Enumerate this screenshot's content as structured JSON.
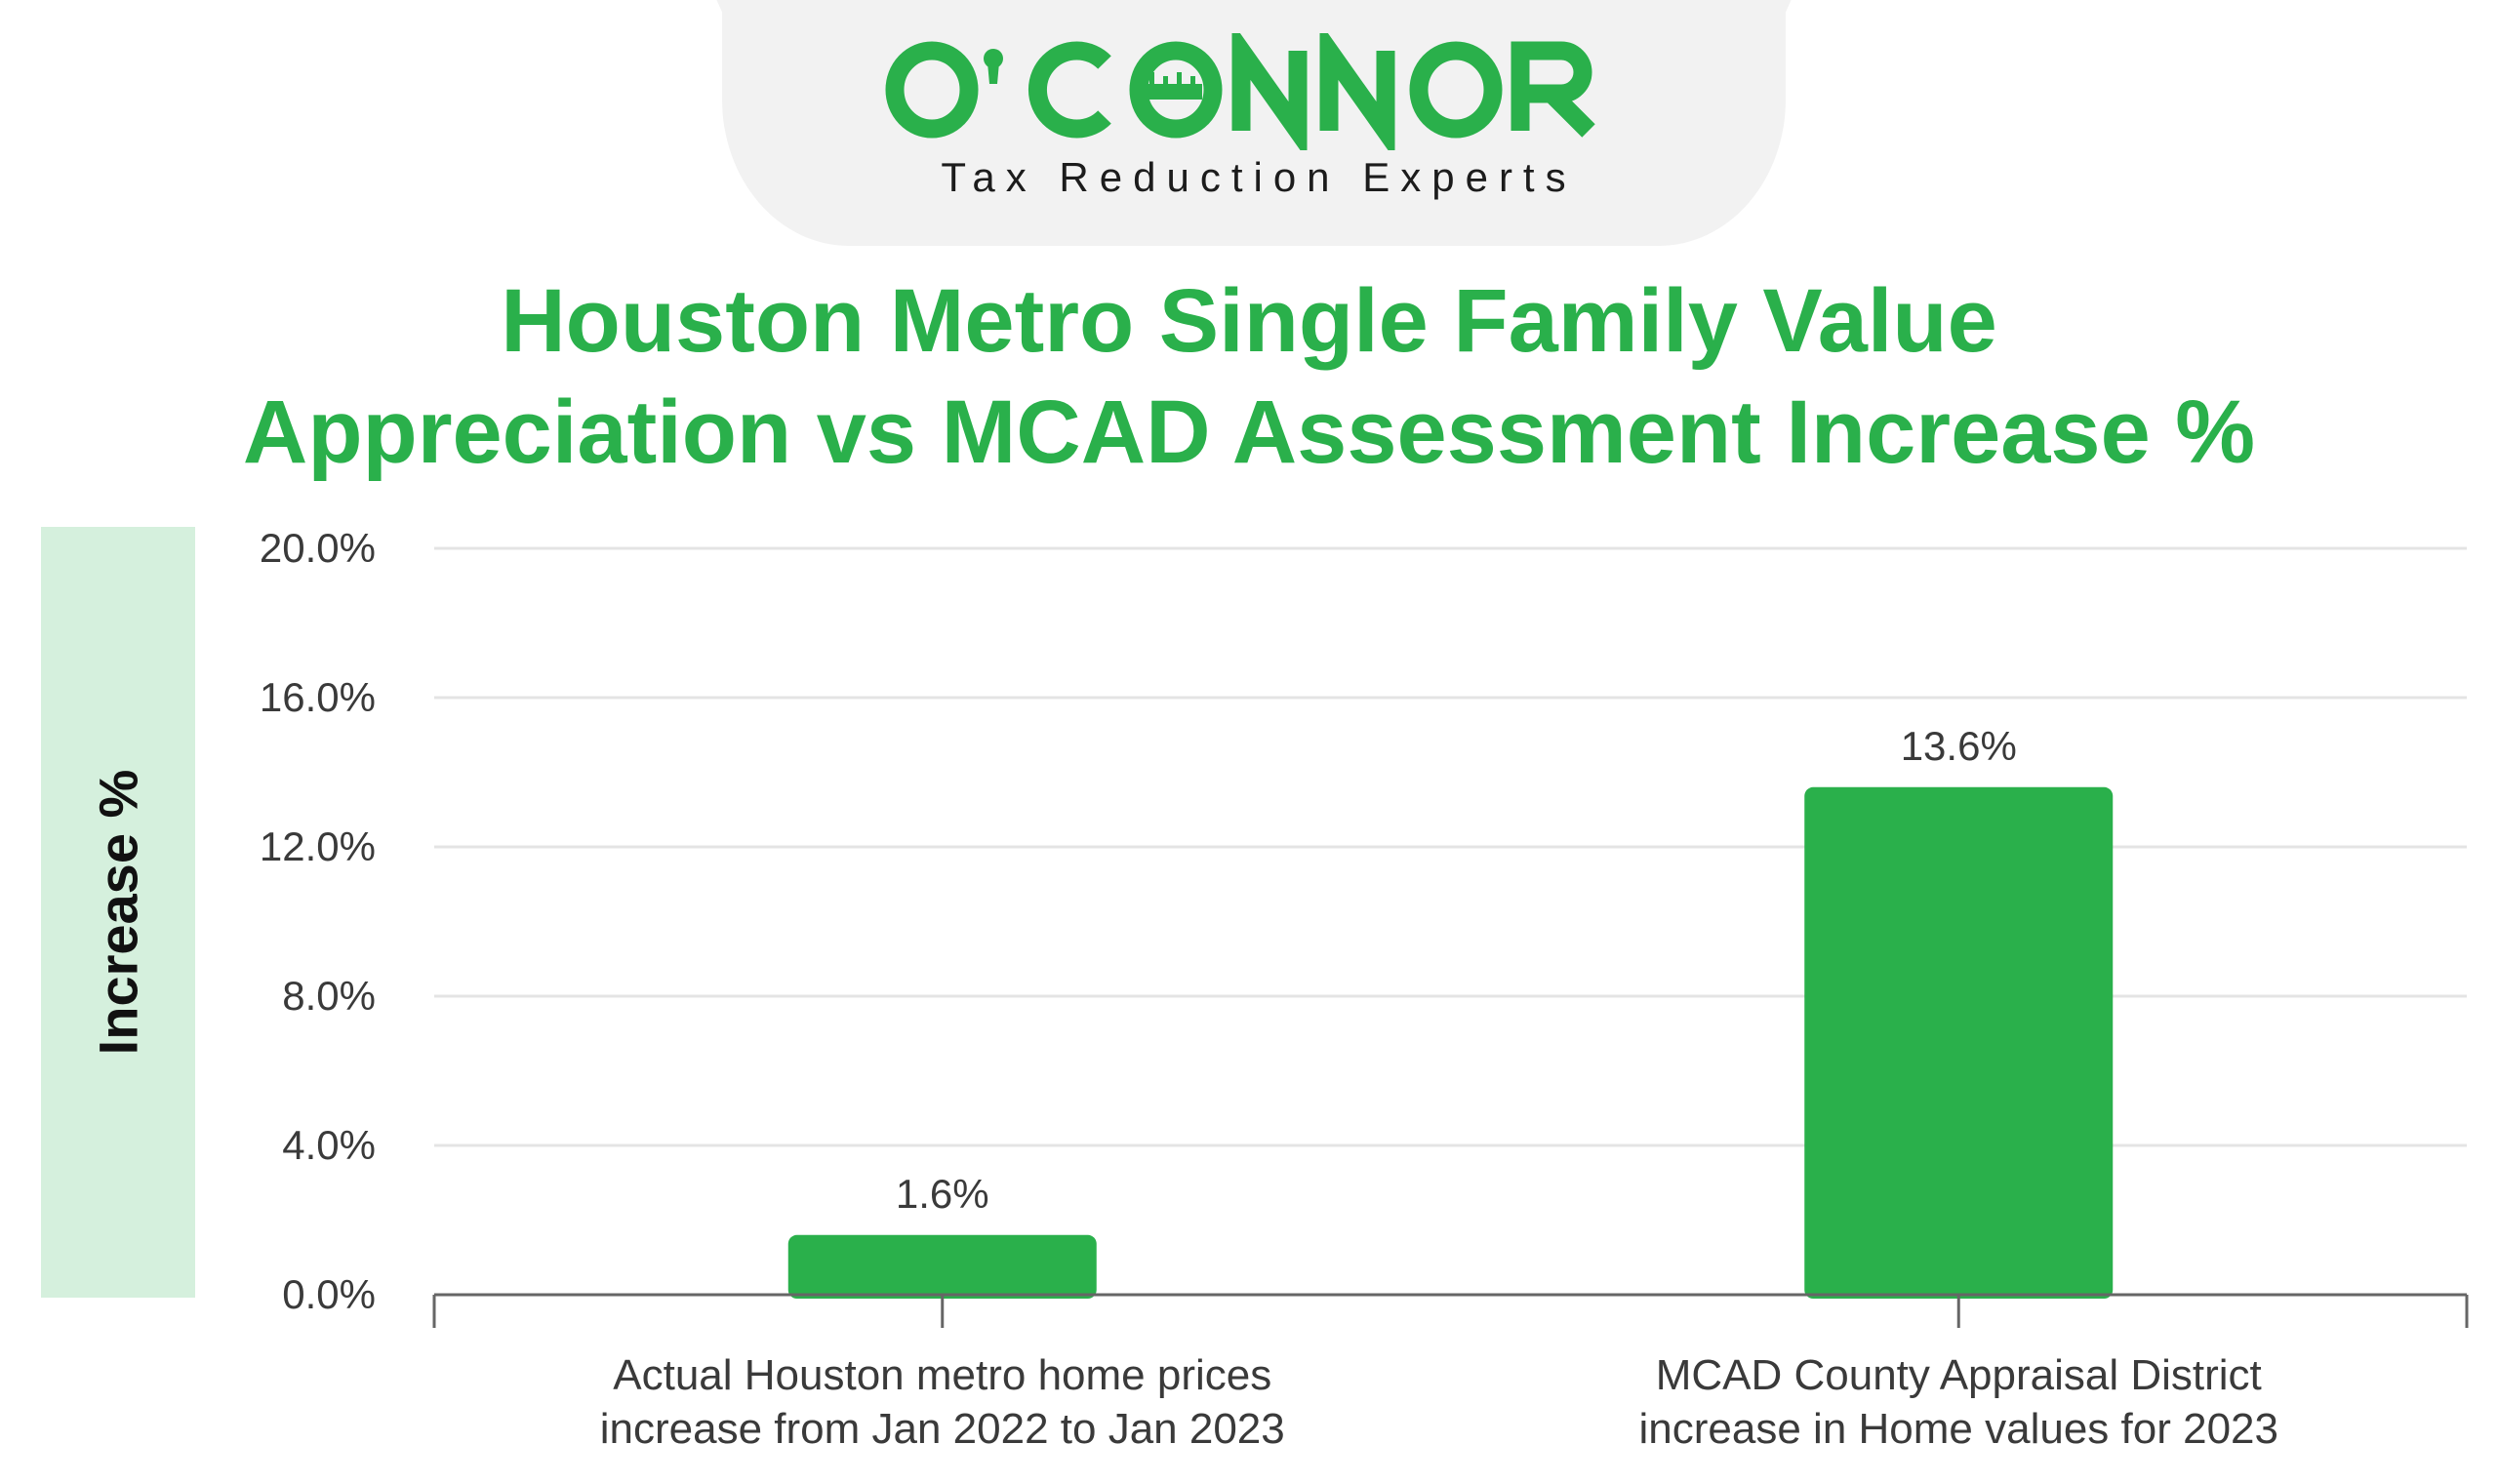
{
  "logo": {
    "brand": "O'CONNOR",
    "tagline": "Tax Reduction Experts",
    "brand_color": "#2ab04b"
  },
  "chart_data": {
    "type": "bar",
    "title": "Houston Metro Single Family Value Appreciation vs MCAD Assessment Increase %",
    "title_lines": [
      "Houston Metro Single Family Value",
      "Appreciation vs MCAD Assessment Increase %"
    ],
    "xlabel": "",
    "ylabel": "Increase %",
    "categories": [
      "Actual Houston metro home prices increase from Jan 2022 to Jan 2023",
      "MCAD County Appraisal District increase in Home values for 2023"
    ],
    "category_lines": [
      [
        "Actual Houston metro home prices",
        "increase from Jan 2022 to Jan 2023"
      ],
      [
        "MCAD County Appraisal District",
        "increase in Home values for 2023"
      ]
    ],
    "values": [
      1.6,
      13.6
    ],
    "value_labels": [
      "1.6%",
      "13.6%"
    ],
    "ylim": [
      0,
      20
    ],
    "yticks": [
      0,
      4,
      8,
      12,
      16,
      20
    ],
    "ytick_labels": [
      "0.0%",
      "4.0%",
      "8.0%",
      "12.0%",
      "16.0%",
      "20.0%"
    ],
    "grid": true,
    "bar_color": "#2ab04b",
    "text_color": "#3a3a3a",
    "ylabel_panel_color": "#d5f0dd"
  }
}
